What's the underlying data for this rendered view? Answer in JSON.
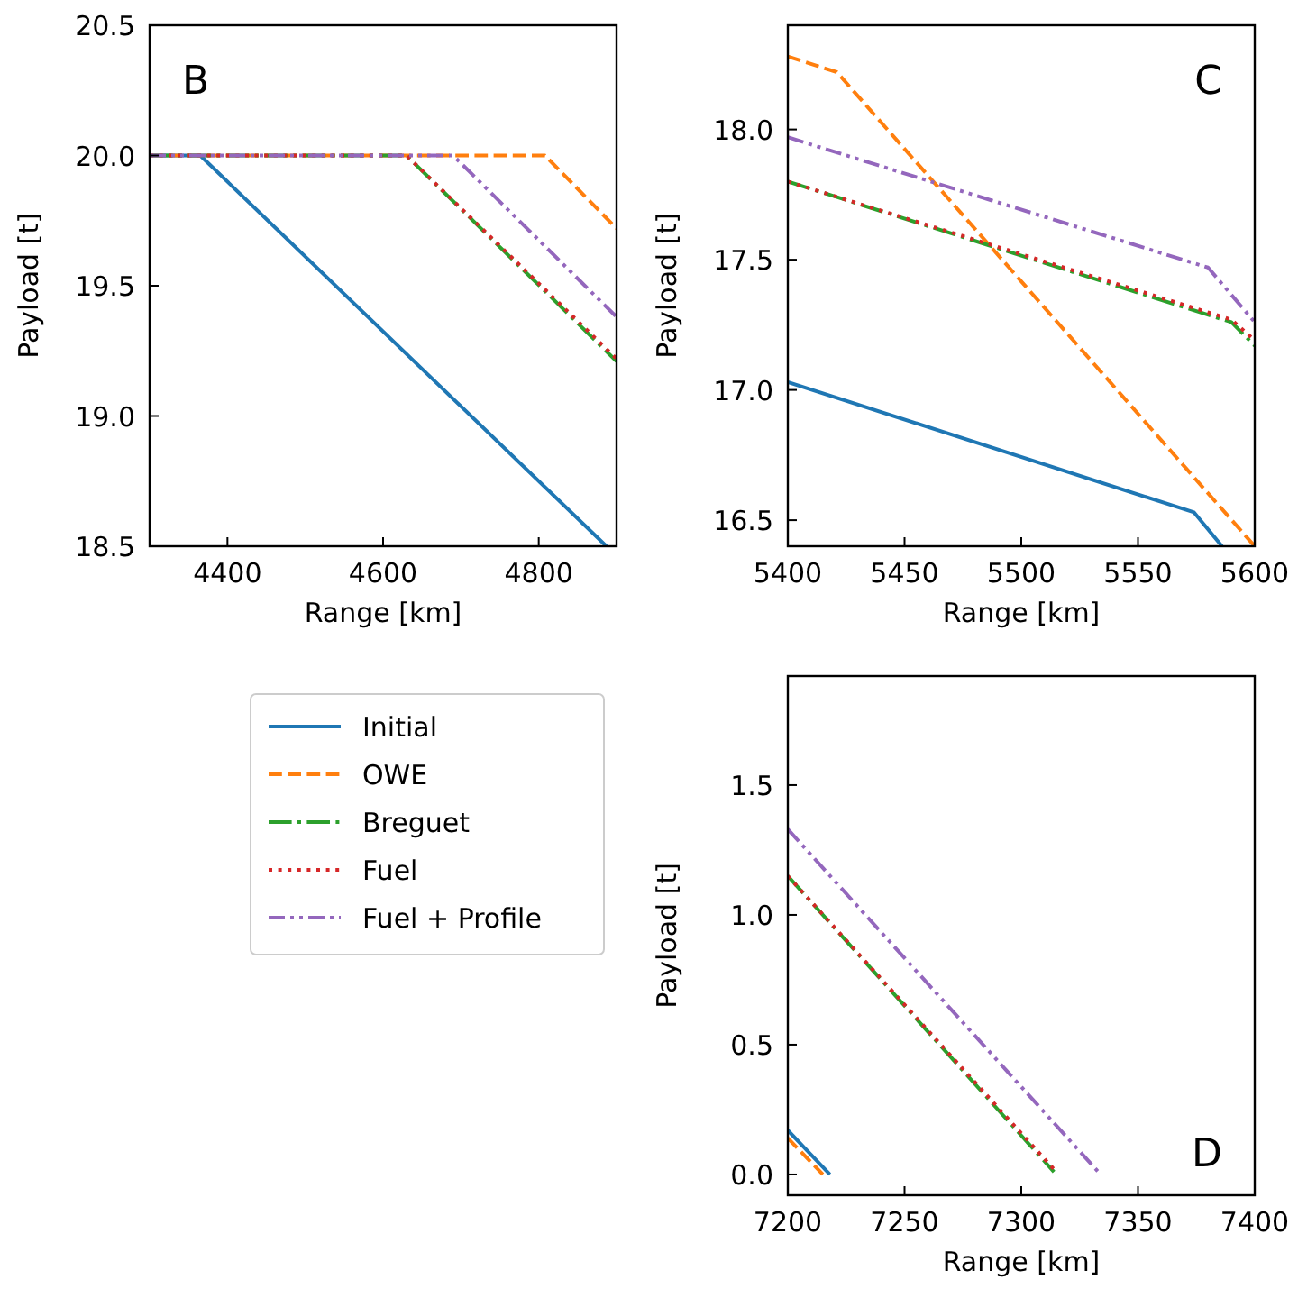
{
  "chart_data": [
    {
      "type": "line",
      "xlabel": "Range [km]",
      "ylabel": "Payload [t]",
      "annotations": [
        "B"
      ],
      "xlim": [
        4300,
        4900
      ],
      "ylim": [
        18.5,
        20.5
      ],
      "xticks": [
        4400,
        4600,
        4800
      ],
      "yticks": [
        {
          "value": 18.5,
          "label": "18.5"
        },
        {
          "value": 19,
          "label": "19.0"
        },
        {
          "value": 19.5,
          "label": "19.5"
        },
        {
          "value": 20,
          "label": "20.0"
        },
        {
          "value": 20.5,
          "label": "20.5"
        }
      ],
      "grid": false,
      "legend": false,
      "series": [
        {
          "color": "#1f77b4",
          "line_style": "solid",
          "x": [
            4300,
            4365,
            4887
          ],
          "values": [
            20,
            20,
            18.5
          ]
        },
        {
          "color": "#ff7f0e",
          "line_style": "dashed",
          "x": [
            4300,
            4808,
            4900
          ],
          "values": [
            20,
            20,
            19.72
          ]
        },
        {
          "color": "#2ca02c",
          "line_style": "dashdot",
          "x": [
            4300,
            4630,
            4900
          ],
          "values": [
            20,
            20,
            19.21
          ]
        },
        {
          "color": "#d62728",
          "line_style": "dotted",
          "x": [
            4300,
            4630,
            4900
          ],
          "values": [
            20,
            20,
            19.22
          ]
        },
        {
          "color": "#9467bd",
          "line_style": "dashdotdot",
          "x": [
            4300,
            4690,
            4900
          ],
          "values": [
            20,
            20,
            19.38
          ]
        }
      ]
    },
    {
      "type": "line",
      "xlabel": "Range [km]",
      "ylabel": "Payload [t]",
      "annotations": [
        "C"
      ],
      "xlim": [
        5400,
        5600
      ],
      "ylim": [
        16.4,
        18.4
      ],
      "xticks": [
        5400,
        5450,
        5500,
        5550,
        5600
      ],
      "yticks": [
        {
          "value": 16.5,
          "label": "16.5"
        },
        {
          "value": 17,
          "label": "17.0"
        },
        {
          "value": 17.5,
          "label": "17.5"
        },
        {
          "value": 18,
          "label": "18.0"
        }
      ],
      "grid": false,
      "legend": false,
      "series": [
        {
          "color": "#1f77b4",
          "line_style": "solid",
          "x": [
            5400,
            5574,
            5586
          ],
          "values": [
            17.03,
            16.53,
            16.4
          ]
        },
        {
          "color": "#ff7f0e",
          "line_style": "dashed",
          "x": [
            5400,
            5421,
            5600
          ],
          "values": [
            18.28,
            18.22,
            16.4
          ]
        },
        {
          "color": "#2ca02c",
          "line_style": "dashdot",
          "x": [
            5400,
            5590,
            5600
          ],
          "values": [
            17.8,
            17.26,
            17.17
          ]
        },
        {
          "color": "#d62728",
          "line_style": "dotted",
          "x": [
            5400,
            5590,
            5600
          ],
          "values": [
            17.8,
            17.27,
            17.19
          ]
        },
        {
          "color": "#9467bd",
          "line_style": "dashdotdot",
          "x": [
            5400,
            5580,
            5600
          ],
          "values": [
            17.97,
            17.47,
            17.26
          ]
        }
      ]
    },
    {
      "type": "line",
      "xlabel": "Range [km]",
      "ylabel": "Payload [t]",
      "annotations": [
        "D"
      ],
      "xlim": [
        7200,
        7400
      ],
      "ylim": [
        -0.08,
        1.92
      ],
      "xticks": [
        7200,
        7250,
        7300,
        7350,
        7400
      ],
      "yticks": [
        {
          "value": 0,
          "label": "0.0"
        },
        {
          "value": 0.5,
          "label": "0.5"
        },
        {
          "value": 1,
          "label": "1.0"
        },
        {
          "value": 1.5,
          "label": "1.5"
        }
      ],
      "grid": false,
      "legend": "left",
      "series": [
        {
          "name": "Initial",
          "color": "#1f77b4",
          "line_style": "solid",
          "x": [
            7200,
            7218
          ],
          "values": [
            0.17,
            0
          ]
        },
        {
          "name": "OWE",
          "color": "#ff7f0e",
          "line_style": "dashed",
          "x": [
            7200,
            7215
          ],
          "values": [
            0.14,
            0
          ]
        },
        {
          "name": "Breguet",
          "color": "#2ca02c",
          "line_style": "dashdot",
          "x": [
            7200,
            7314
          ],
          "values": [
            1.15,
            0.01
          ]
        },
        {
          "name": "Fuel",
          "color": "#d62728",
          "line_style": "dotted",
          "x": [
            7200,
            7315
          ],
          "values": [
            1.15,
            0.01
          ]
        },
        {
          "name": "Fuel + Profile",
          "color": "#9467bd",
          "line_style": "dashdotdot",
          "x": [
            7200,
            7334
          ],
          "values": [
            1.33,
            0
          ]
        }
      ]
    }
  ]
}
